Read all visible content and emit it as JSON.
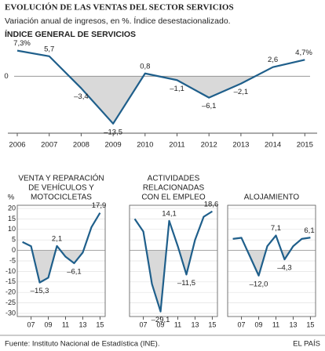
{
  "header": {
    "title": "EVOLUCIÓN DE LAS VENTAS DEL SECTOR SERVICIOS",
    "subtitle": "Variación anual de ingresos, en %. Índice desestacionalizado."
  },
  "chart_data": [
    {
      "type": "line",
      "title": "ÍNDICE GENERAL DE SERVICIOS",
      "categories": [
        "2006",
        "2007",
        "2008",
        "2009",
        "2010",
        "2011",
        "2012",
        "2013",
        "2014",
        "2015"
      ],
      "values": [
        7.3,
        5.7,
        -3.4,
        -13.5,
        0.8,
        -1.1,
        -6.1,
        -2.1,
        2.6,
        4.7
      ],
      "value_labels": [
        "7,3%",
        "5,7",
        "–3,4",
        "–13,5",
        "0,8",
        "–1,1",
        "–6,1",
        "–2,1",
        "2,6",
        "4,7%"
      ],
      "color": "#1f5f8b",
      "ylim": [
        -16,
        9
      ],
      "yticks": [
        0
      ]
    },
    {
      "type": "line",
      "title": [
        "VENTA Y REPARACIÓN",
        "DE VEHÍCULOS Y",
        "MOTOCICLETAS"
      ],
      "y_label": "%",
      "x": [
        2006,
        2007,
        2008,
        2009,
        2010,
        2011,
        2012,
        2013,
        2014,
        2015
      ],
      "values": [
        4,
        2,
        -15.3,
        -13,
        2.1,
        -3,
        -6.1,
        -1,
        11,
        17.9
      ],
      "value_labels": [
        null,
        null,
        "–15,3",
        null,
        "2,1",
        null,
        "–6,1",
        null,
        null,
        "17,9"
      ],
      "color": "#1f5f8b",
      "xlim": [
        2005.4,
        2015.6
      ],
      "ylim": [
        -30,
        20
      ],
      "xticks": [
        {
          "value": 2007,
          "label": "07"
        },
        {
          "value": 2009,
          "label": "09"
        },
        {
          "value": 2011,
          "label": "11"
        },
        {
          "value": 2013,
          "label": "13"
        },
        {
          "value": 2015,
          "label": "15"
        }
      ],
      "yticks": [
        20,
        15,
        10,
        5,
        0,
        -5,
        -10,
        -15,
        -20,
        -25,
        -30
      ]
    },
    {
      "type": "line",
      "title": [
        "ACTIVIDADES",
        "RELACIONADAS",
        "CON EL EMPLEO"
      ],
      "x": [
        2006,
        2007,
        2008,
        2009,
        2010,
        2011,
        2012,
        2013,
        2014,
        2015
      ],
      "values": [
        15,
        9,
        -16,
        -29.1,
        14.1,
        2,
        -11.5,
        5,
        16,
        18.6
      ],
      "value_labels": [
        null,
        null,
        null,
        "–29,1",
        "14,1",
        null,
        "–11,5",
        null,
        null,
        "18,6"
      ],
      "color": "#1f5f8b",
      "xlim": [
        2005.4,
        2015.6
      ],
      "ylim": [
        -30,
        20
      ],
      "xticks": [
        {
          "value": 2007,
          "label": "07"
        },
        {
          "value": 2009,
          "label": "09"
        },
        {
          "value": 2011,
          "label": "11"
        },
        {
          "value": 2013,
          "label": "13"
        },
        {
          "value": 2015,
          "label": "15"
        }
      ],
      "yticks": [
        20,
        15,
        10,
        5,
        0,
        -5,
        -10,
        -15,
        -20,
        -25,
        -30
      ]
    },
    {
      "type": "line",
      "title": [
        "ALOJAMIENTO"
      ],
      "x": [
        2006,
        2007,
        2008,
        2009,
        2010,
        2011,
        2012,
        2013,
        2014,
        2015
      ],
      "values": [
        5.5,
        6,
        -3,
        -12.0,
        2,
        7.1,
        -4.3,
        2,
        5.5,
        6.1
      ],
      "value_labels": [
        null,
        null,
        null,
        "–12,0",
        null,
        "7,1",
        "–4,3",
        null,
        null,
        "6,1"
      ],
      "color": "#1f5f8b",
      "xlim": [
        2005.4,
        2015.6
      ],
      "ylim": [
        -30,
        20
      ],
      "xticks": [
        {
          "value": 2007,
          "label": "07"
        },
        {
          "value": 2009,
          "label": "09"
        },
        {
          "value": 2011,
          "label": "11"
        },
        {
          "value": 2013,
          "label": "13"
        },
        {
          "value": 2015,
          "label": "15"
        }
      ],
      "yticks": [
        20,
        15,
        10,
        5,
        0,
        -5,
        -10,
        -15,
        -20,
        -25,
        -30
      ]
    }
  ],
  "footer": {
    "source": "Fuente: Instituto Nacional de Estadística (INE).",
    "brand": "EL PAÍS"
  }
}
